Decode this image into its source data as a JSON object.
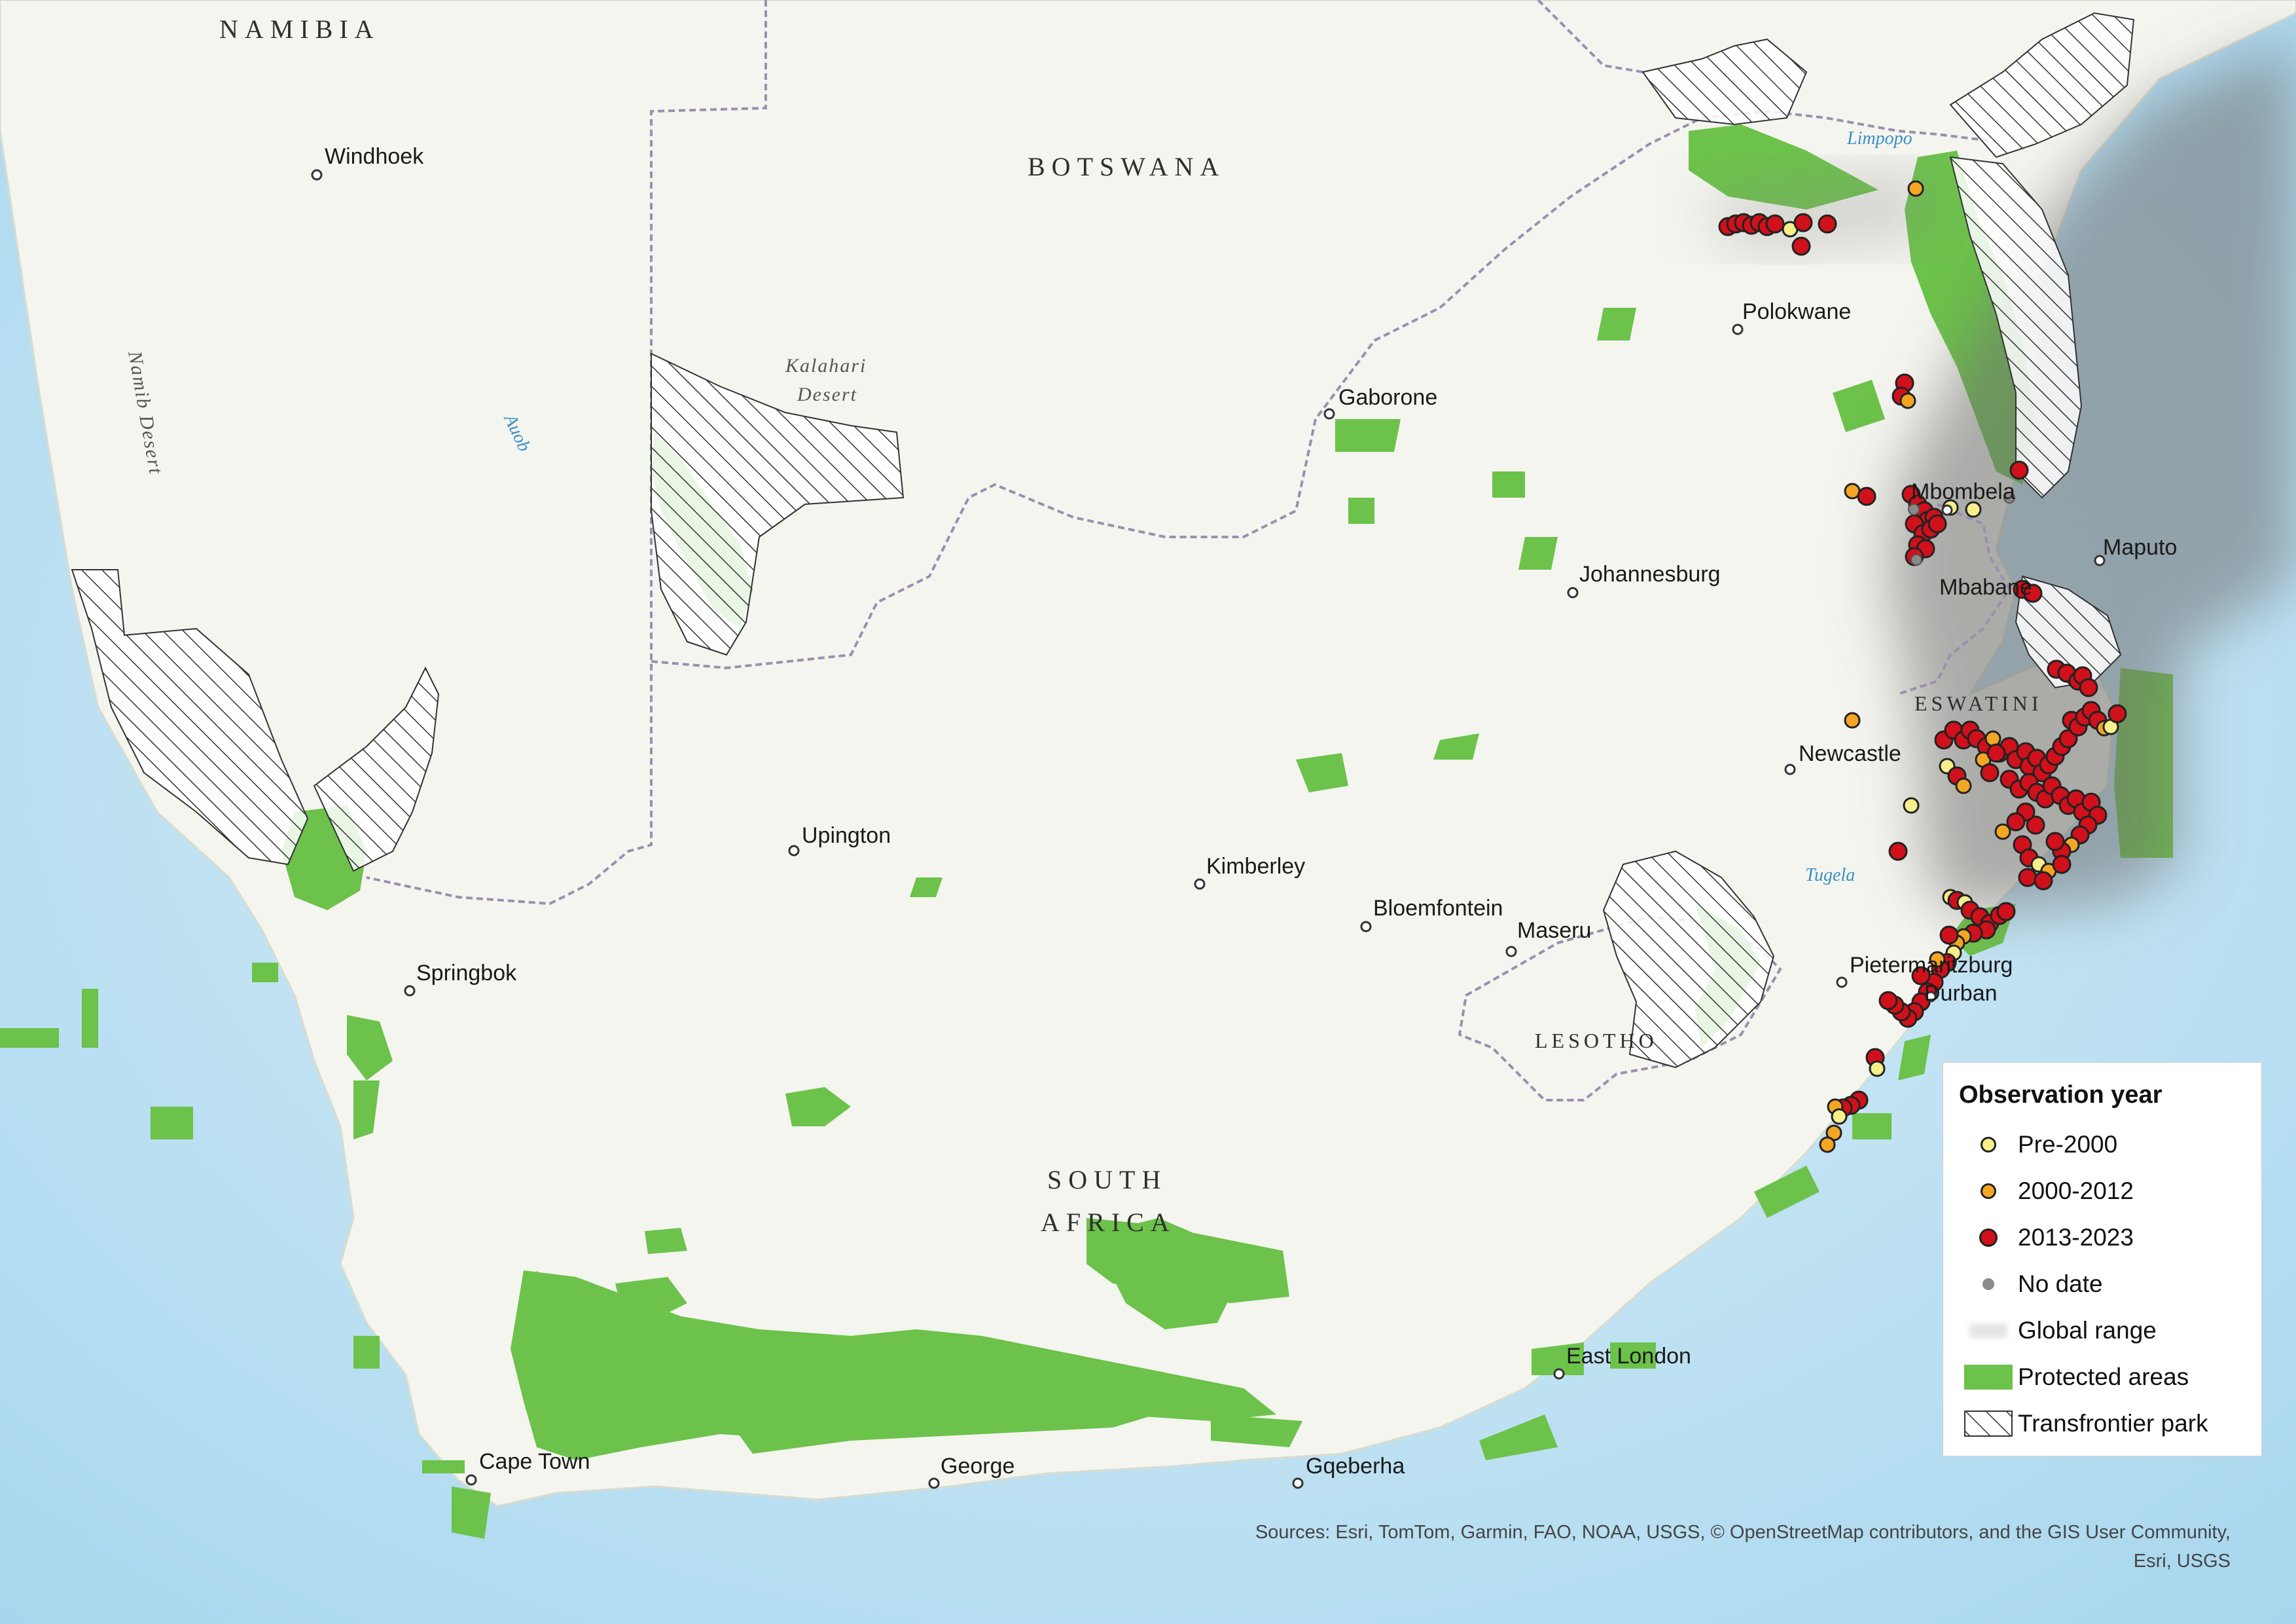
{
  "countries": {
    "namibia": "NAMIBIA",
    "botswana": "BOTSWANA",
    "south_africa_1": "SOUTH",
    "south_africa_2": "AFRICA",
    "eswatini": "ESWATINI",
    "lesotho": "LESOTHO"
  },
  "cities": {
    "windhoek": "Windhoek",
    "gaborone": "Gaborone",
    "polokwane": "Polokwane",
    "mbombela": "Mbombela",
    "maputo": "Maputo",
    "mbabane": "Mbabane",
    "johannesburg": "Johannesburg",
    "newcastle": "Newcastle",
    "upington": "Upington",
    "kimberley": "Kimberley",
    "bloemfontein": "Bloemfontein",
    "maseru": "Maseru",
    "pietermaritzburg": "Pietermaritzburg",
    "durban": "Durban",
    "springbok": "Springbok",
    "east_london": "East London",
    "cape_town": "Cape Town",
    "george": "George",
    "gqeberha": "Gqeberha"
  },
  "features": {
    "kalahari_1": "Kalahari",
    "kalahari_2": "Desert",
    "namib": "Namib Desert"
  },
  "rivers": {
    "limpopo": "Limpopo",
    "auob": "Auob",
    "tugela": "Tugela"
  },
  "legend": {
    "title": "Observation year",
    "items": [
      {
        "label": "Pre-2000",
        "color": "#f7ef8a",
        "kind": "dot"
      },
      {
        "label": "2000-2012",
        "color": "#f3a623",
        "kind": "dot"
      },
      {
        "label": "2013-2023",
        "color": "#d0101a",
        "kind": "dot-large"
      },
      {
        "label": "No date",
        "color": "#8a8a8a",
        "kind": "dot-small"
      },
      {
        "label": "Global range",
        "color": "#c8c8c8",
        "kind": "range"
      },
      {
        "label": "Protected areas",
        "color": "#6cc24a",
        "kind": "fill"
      },
      {
        "label": "Transfrontier park",
        "color": "#ffffff",
        "kind": "hatch"
      }
    ]
  },
  "sources": {
    "line1": "Sources: Esri, TomTom, Garmin, FAO, NOAA, USGS, © OpenStreetMap contributors, and the GIS User Community,",
    "line2": "Esri, USGS"
  },
  "colors": {
    "ocean": "#bfe3f3",
    "land": "#f4f5ef",
    "protected": "#6cc24a",
    "range": "#6e6e6e",
    "border": "#9a8fb0"
  }
}
